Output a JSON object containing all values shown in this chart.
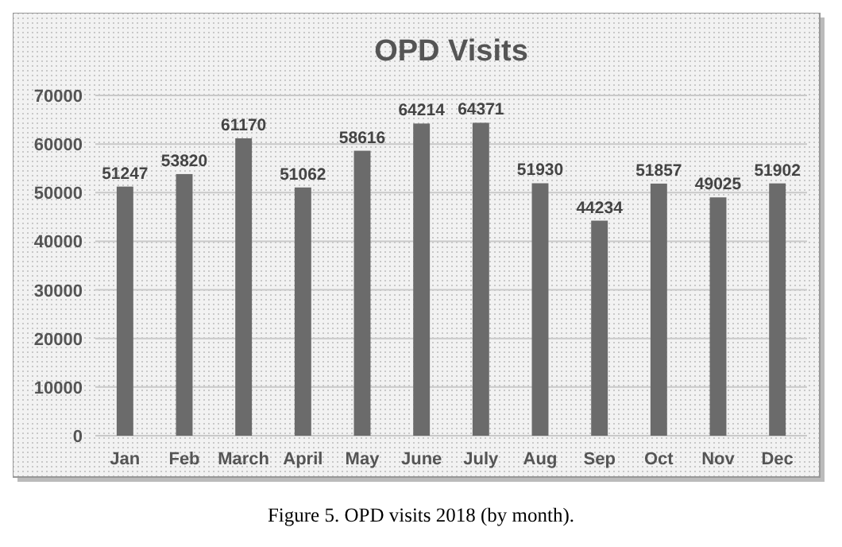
{
  "chart_data": {
    "type": "bar",
    "title": "OPD Visits",
    "categories": [
      "Jan",
      "Feb",
      "March",
      "April",
      "May",
      "June",
      "July",
      "Aug",
      "Sep",
      "Oct",
      "Nov",
      "Dec"
    ],
    "values": [
      51247,
      53820,
      61170,
      51062,
      58616,
      64214,
      64371,
      51930,
      44234,
      51857,
      49025,
      51902
    ],
    "color": "#6b6b6b",
    "ylim": [
      0,
      70000
    ],
    "yticks": [
      0,
      10000,
      20000,
      30000,
      40000,
      50000,
      60000,
      70000
    ],
    "grid": "y",
    "data_labels": true,
    "annotations": [
      "Figure 5. OPD visits 2018 (by month)."
    ]
  }
}
